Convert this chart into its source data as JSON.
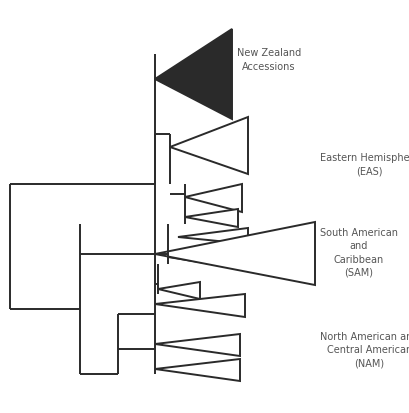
{
  "bg_color": "#ffffff",
  "line_color": "#2a2a2a",
  "line_width": 1.4,
  "label_NZ": "New Zealand\nAccessions",
  "label_EAS": "Eastern Hemisphere\n(EAS)",
  "label_SAM": "South American\nand\nCaribbean\n(SAM)",
  "label_NAM": "North American and\nCentral American\n(NAM)",
  "label_fontsize": 7.0,
  "label_color": "#555555"
}
